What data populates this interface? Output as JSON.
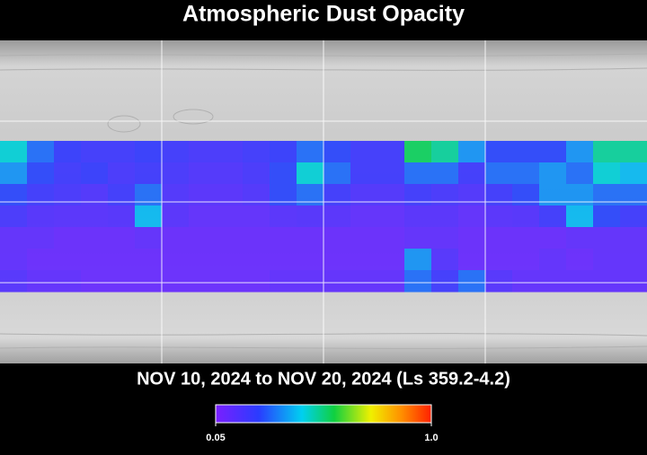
{
  "title": "Atmospheric Dust Opacity",
  "date_range": "NOV 10, 2024 to NOV 20, 2024 (Ls 359.2-4.2)",
  "colorbar": {
    "ticks": [
      0.05,
      {
        "value": 1,
        "label": "1.0"
      }
    ]
  },
  "dust": {
    "grid": [
      [
        0.45,
        0.3,
        0.22,
        0.2,
        0.2,
        0.22,
        0.2,
        0.18,
        0.18,
        0.2,
        0.22,
        0.3,
        0.25,
        0.2,
        0.2,
        0.55,
        0.5,
        0.35,
        0.25,
        0.25,
        0.25,
        0.35,
        0.5,
        0.5
      ],
      [
        0.35,
        0.25,
        0.2,
        0.22,
        0.18,
        0.2,
        0.18,
        0.16,
        0.16,
        0.18,
        0.25,
        0.45,
        0.3,
        0.2,
        0.2,
        0.3,
        0.3,
        0.2,
        0.3,
        0.3,
        0.35,
        0.3,
        0.45,
        0.4
      ],
      [
        0.25,
        0.2,
        0.18,
        0.16,
        0.2,
        0.3,
        0.16,
        0.14,
        0.14,
        0.16,
        0.25,
        0.3,
        0.2,
        0.16,
        0.16,
        0.2,
        0.18,
        0.16,
        0.2,
        0.25,
        0.35,
        0.35,
        0.3,
        0.3
      ],
      [
        0.18,
        0.15,
        0.14,
        0.14,
        0.15,
        0.4,
        0.14,
        0.12,
        0.12,
        0.12,
        0.14,
        0.15,
        0.14,
        0.12,
        0.12,
        0.14,
        0.14,
        0.12,
        0.14,
        0.15,
        0.2,
        0.4,
        0.25,
        0.2
      ],
      [
        0.12,
        0.12,
        0.1,
        0.1,
        0.1,
        0.12,
        0.1,
        0.1,
        0.1,
        0.1,
        0.1,
        0.1,
        0.1,
        0.1,
        0.1,
        0.12,
        0.12,
        0.1,
        0.1,
        0.1,
        0.1,
        0.12,
        0.12,
        0.12
      ],
      [
        0.12,
        0.1,
        0.1,
        0.1,
        0.1,
        0.1,
        0.1,
        0.1,
        0.1,
        0.1,
        0.1,
        0.1,
        0.1,
        0.1,
        0.1,
        0.35,
        0.15,
        0.1,
        0.1,
        0.1,
        0.12,
        0.1,
        0.12,
        0.12
      ],
      [
        0.15,
        0.12,
        0.12,
        0.1,
        0.1,
        0.1,
        0.1,
        0.1,
        0.1,
        0.1,
        0.12,
        0.12,
        0.12,
        0.12,
        0.12,
        0.3,
        0.2,
        0.3,
        0.15,
        0.12,
        0.12,
        0.12,
        0.12,
        0.12
      ]
    ]
  }
}
